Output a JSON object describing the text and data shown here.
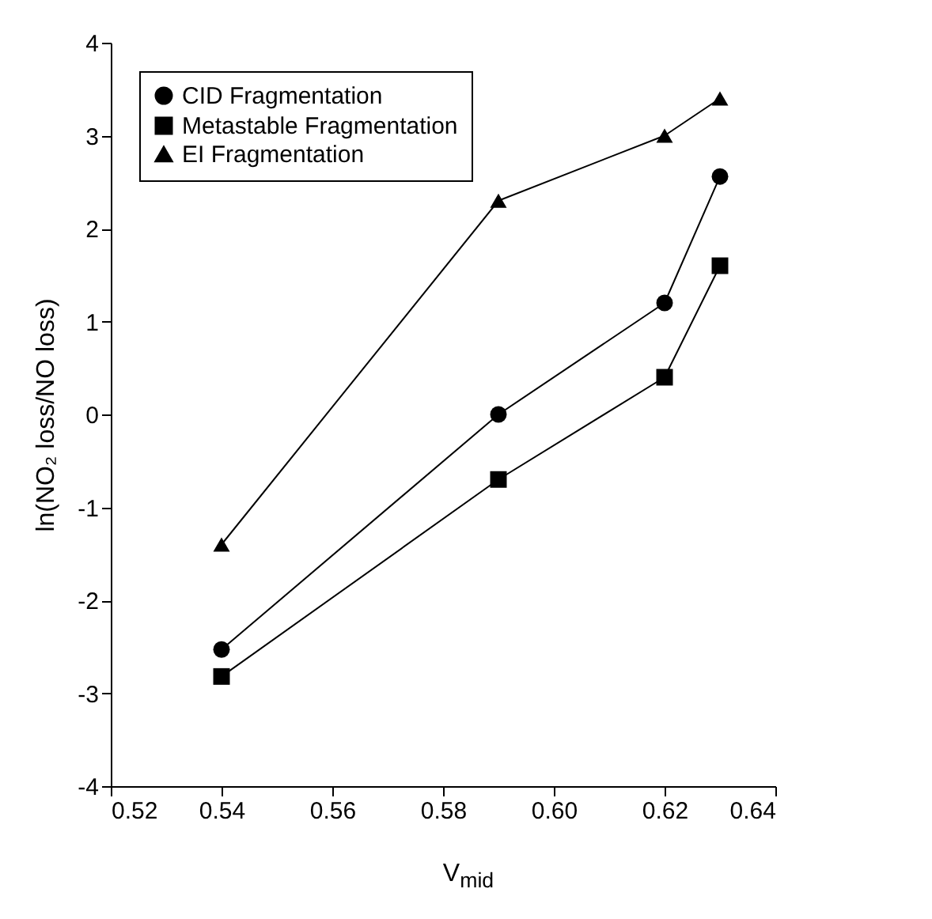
{
  "chart_data": {
    "type": "line",
    "xlabel": "V$_{mid}$",
    "ylabel": "ln(NO₂ loss/NO loss)",
    "x": [
      0.54,
      0.59,
      0.62,
      0.63
    ],
    "series": [
      {
        "name": "CID Fragmentation",
        "color": "#000000",
        "marker": "circle",
        "values": [
          -2.53,
          0.0,
          1.2,
          2.56
        ]
      },
      {
        "name": "Metastable Fragmentation",
        "color": "#000000",
        "marker": "square",
        "values": [
          -2.82,
          -0.7,
          0.4,
          1.6
        ]
      },
      {
        "name": "EI Fragmentation",
        "color": "#000000",
        "marker": "triangle",
        "values": [
          -1.4,
          2.3,
          3.0,
          3.4
        ]
      }
    ],
    "xlim": [
      0.52,
      0.64
    ],
    "xticks": [
      {
        "value": 0.52,
        "label": "0.52"
      },
      {
        "value": 0.54,
        "label": "0.54"
      },
      {
        "value": 0.56,
        "label": "0.56"
      },
      {
        "value": 0.58,
        "label": "0.58"
      },
      {
        "value": 0.6,
        "label": "0.60"
      },
      {
        "value": 0.62,
        "label": "0.62"
      },
      {
        "value": 0.64,
        "label": "0.64"
      }
    ],
    "ylim": [
      -4,
      4
    ],
    "yticks": [
      -4,
      -3,
      -2,
      -1,
      0,
      1,
      2,
      3,
      4
    ],
    "grid": false,
    "legend": "top left",
    "line_style": "solid"
  }
}
